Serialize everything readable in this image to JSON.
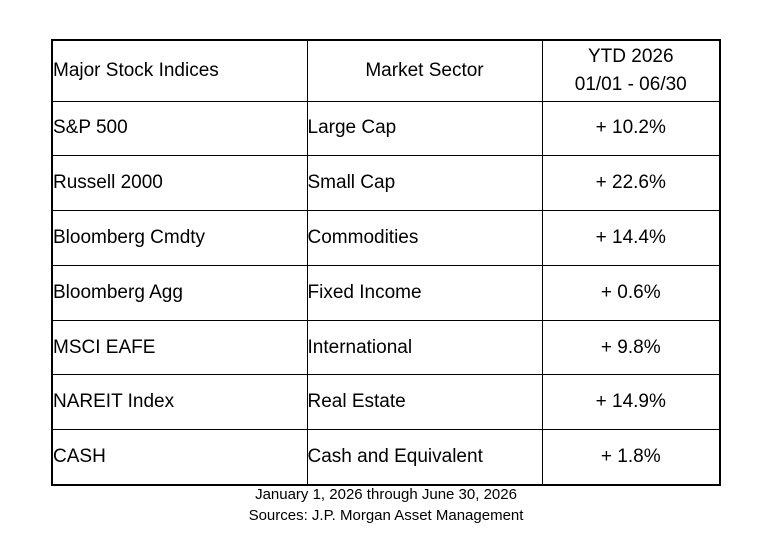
{
  "table": {
    "headers": {
      "index": "Major Stock Indices",
      "sector": "Market Sector",
      "period_line1": "YTD 2026",
      "period_line2": "01/01 - 06/30"
    },
    "rows": [
      {
        "index": "S&P 500",
        "sector": "Large Cap",
        "return": "+ 10.2%"
      },
      {
        "index": "Russell 2000",
        "sector": "Small Cap",
        "return": "+ 22.6%"
      },
      {
        "index": "Bloomberg Cmdty",
        "sector": "Commodities",
        "return": "+ 14.4%"
      },
      {
        "index": "Bloomberg Agg",
        "sector": "Fixed Income",
        "return": "+ 0.6%"
      },
      {
        "index": "MSCI EAFE",
        "sector": "International",
        "return": "+ 9.8%"
      },
      {
        "index": "NAREIT Index",
        "sector": "Real Estate",
        "return": "+ 14.9%"
      },
      {
        "index": "CASH",
        "sector": "Cash and Equivalent",
        "return": "+ 1.8%"
      }
    ]
  },
  "footnotes": {
    "date_range": "January 1, 2026 through June 30, 2026",
    "sources": "Sources: J.P. Morgan Asset Management"
  }
}
